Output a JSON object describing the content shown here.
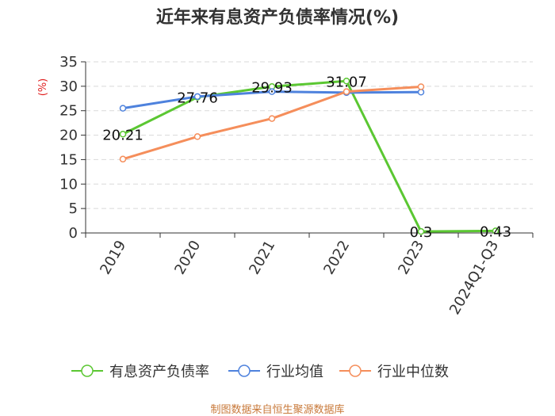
{
  "chart_data": {
    "type": "line",
    "title": "近年来有息资产负债率情况(%)",
    "ylabel": "(%)",
    "categories": [
      "2019",
      "2020",
      "2021",
      "2022",
      "2023",
      "2024Q1-Q3"
    ],
    "ylim": [
      0,
      35
    ],
    "yticks": [
      0,
      5,
      10,
      15,
      20,
      25,
      30,
      35
    ],
    "grid": true,
    "legend_position": "bottom",
    "series": [
      {
        "name": "有息资产负债率",
        "color": "#5bc732",
        "values": [
          20.21,
          27.76,
          29.93,
          31.07,
          0.3,
          0.43
        ],
        "labels": [
          "20.21",
          "27.76",
          "29.93",
          "31.07",
          "0.3",
          "0.43"
        ]
      },
      {
        "name": "行业均值",
        "color": "#4e82dd",
        "values": [
          25.5,
          27.9,
          28.9,
          28.7,
          28.8,
          null
        ]
      },
      {
        "name": "行业中位数",
        "color": "#f58e5b",
        "values": [
          15.1,
          19.7,
          23.4,
          28.9,
          29.9,
          null
        ]
      }
    ]
  },
  "footer": {
    "source": "制图数据来自恒生聚源数据库"
  }
}
